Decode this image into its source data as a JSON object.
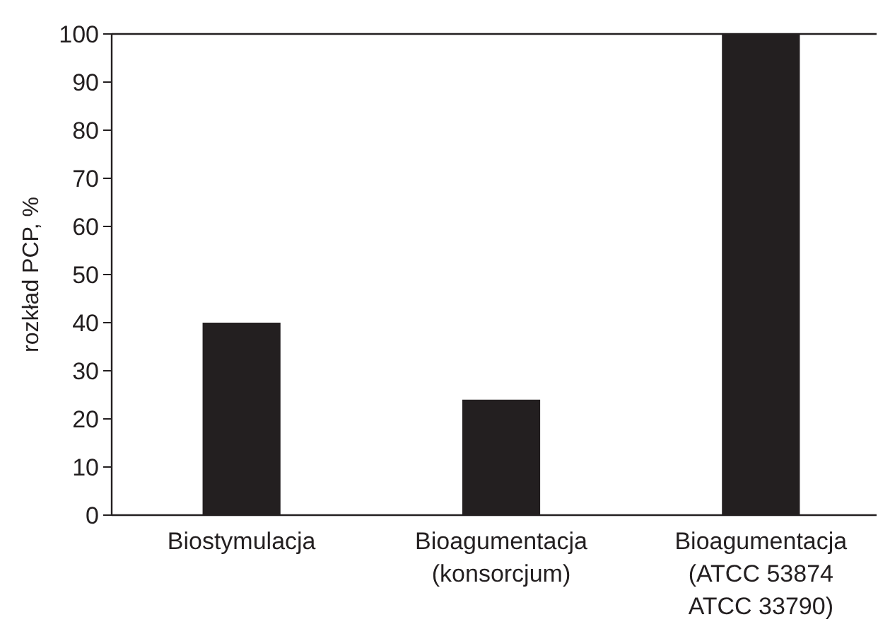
{
  "chart_data": {
    "type": "bar",
    "ylabel": "rozkład PCP, %",
    "categories": [
      "Biostymulacja",
      "Bioagumentacja\n(konsorcjum)",
      "Bioagumentacja\n(ATCC 53874\nATCC 33790)"
    ],
    "values": [
      40,
      24,
      100
    ],
    "color": "#231f20",
    "ylim": [
      0,
      100
    ],
    "yticks": [
      0,
      10,
      20,
      30,
      40,
      50,
      60,
      70,
      80,
      90,
      100
    ],
    "grid": false
  }
}
